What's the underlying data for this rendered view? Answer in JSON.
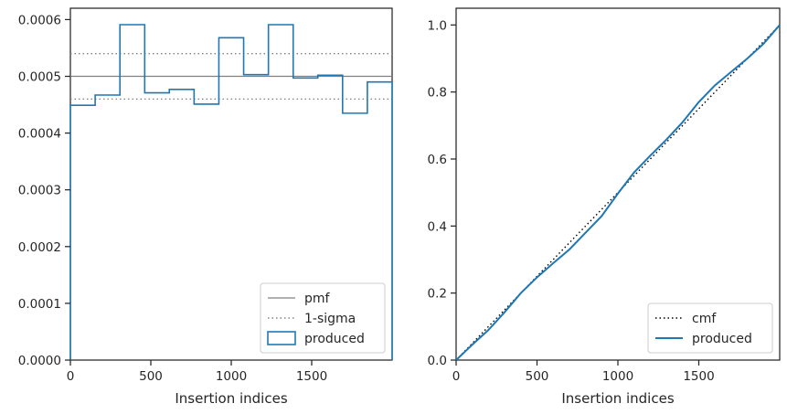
{
  "chart_data": [
    {
      "type": "step-histogram",
      "xlabel": "Insertion indices",
      "ylabel": "",
      "xlim": [
        0,
        2000
      ],
      "ylim": [
        0,
        0.00062
      ],
      "xticks": [
        0,
        500,
        1000,
        1500
      ],
      "xtick_labels": [
        "0",
        "500",
        "1000",
        "1500"
      ],
      "yticks": [
        0,
        0.0001,
        0.0002,
        0.0003,
        0.0004,
        0.0005,
        0.0006
      ],
      "ytick_labels": [
        "0.0000",
        "0.0001",
        "0.0002",
        "0.0003",
        "0.0004",
        "0.0005",
        "0.0006"
      ],
      "grid": false,
      "legend": {
        "placement": "lower-right",
        "entries": [
          "pmf",
          "1-sigma",
          "produced"
        ]
      },
      "reference_lines": [
        {
          "name": "pmf",
          "y": 0.0005,
          "style": "solid",
          "color": "#808080"
        },
        {
          "name": "1-sigma",
          "y": 0.00054,
          "style": "dotted",
          "color": "#808080"
        },
        {
          "name": "1-sigma",
          "y": 0.00046,
          "style": "dotted",
          "color": "#808080"
        }
      ],
      "series": [
        {
          "name": "produced",
          "color": "#1f77b4",
          "bin_edges": [
            0,
            154,
            308,
            462,
            615,
            769,
            923,
            1077,
            1231,
            1385,
            1538,
            1692,
            1846,
            2000
          ],
          "values": [
            0.000449,
            0.000467,
            0.000591,
            0.000471,
            0.000477,
            0.000451,
            0.000568,
            0.000503,
            0.000591,
            0.000497,
            0.000502,
            0.000435,
            0.00049
          ]
        }
      ]
    },
    {
      "type": "line",
      "xlabel": "Insertion indices",
      "ylabel": "",
      "xlim": [
        0,
        2000
      ],
      "ylim": [
        0,
        1.05
      ],
      "xticks": [
        0,
        500,
        1000,
        1500
      ],
      "xtick_labels": [
        "0",
        "500",
        "1000",
        "1500"
      ],
      "yticks": [
        0,
        0.2,
        0.4,
        0.6,
        0.8,
        1.0
      ],
      "ytick_labels": [
        "0.0",
        "0.2",
        "0.4",
        "0.6",
        "0.8",
        "1.0"
      ],
      "grid": false,
      "legend": {
        "placement": "lower-right",
        "entries": [
          "cmf",
          "produced"
        ]
      },
      "series": [
        {
          "name": "cmf",
          "style": "dotted",
          "color": "#000000",
          "x": [
            0,
            2000
          ],
          "y": [
            0,
            1.0
          ]
        },
        {
          "name": "produced",
          "style": "solid",
          "color": "#1f77b4",
          "x": [
            0,
            100,
            200,
            300,
            400,
            500,
            600,
            700,
            800,
            900,
            1000,
            1100,
            1200,
            1300,
            1400,
            1500,
            1600,
            1700,
            1800,
            1900,
            2000
          ],
          "y": [
            0,
            0.046,
            0.09,
            0.143,
            0.2,
            0.247,
            0.289,
            0.33,
            0.38,
            0.43,
            0.497,
            0.56,
            0.61,
            0.658,
            0.71,
            0.77,
            0.82,
            0.86,
            0.9,
            0.944,
            1.0
          ]
        }
      ]
    }
  ]
}
